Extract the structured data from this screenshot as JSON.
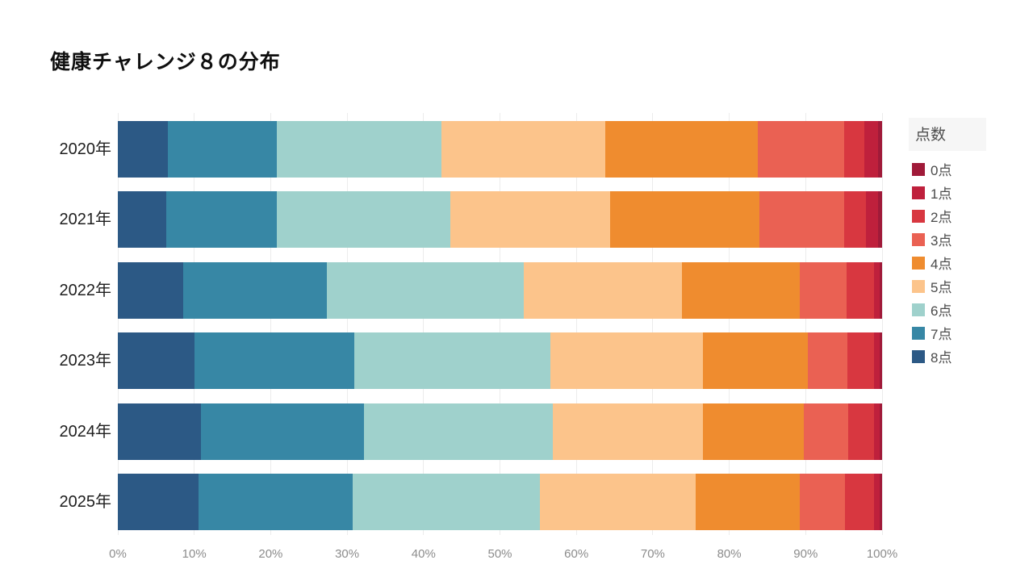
{
  "title": "健康チャレンジ８の分布",
  "chart_data": {
    "type": "bar",
    "orientation": "horizontal",
    "stacked": true,
    "unit": "percent",
    "title": "健康チャレンジ８の分布",
    "categories": [
      "2020年",
      "2021年",
      "2022年",
      "2023年",
      "2024年",
      "2025年"
    ],
    "series": [
      {
        "name": "8点",
        "color": "#2c5985",
        "values": [
          6.5,
          6.3,
          8.6,
          10.0,
          10.9,
          10.6
        ]
      },
      {
        "name": "7点",
        "color": "#3787a5",
        "values": [
          14.3,
          14.5,
          18.8,
          20.9,
          21.3,
          20.1
        ]
      },
      {
        "name": "6点",
        "color": "#9fd1cc",
        "values": [
          21.5,
          22.7,
          25.7,
          25.7,
          24.7,
          24.5
        ]
      },
      {
        "name": "5点",
        "color": "#fcc48b",
        "values": [
          21.5,
          20.9,
          20.7,
          20.0,
          19.7,
          20.4
        ]
      },
      {
        "name": "4点",
        "color": "#ef8c2f",
        "values": [
          19.9,
          19.5,
          15.4,
          13.7,
          13.2,
          13.6
        ]
      },
      {
        "name": "3点",
        "color": "#ea6153",
        "values": [
          11.3,
          11.1,
          6.2,
          5.2,
          5.8,
          5.9
        ]
      },
      {
        "name": "2点",
        "color": "#d83740",
        "values": [
          2.7,
          2.9,
          3.6,
          3.4,
          3.3,
          3.9
        ]
      },
      {
        "name": "1点",
        "color": "#bf203c",
        "values": [
          1.8,
          1.6,
          0.7,
          0.8,
          0.8,
          0.7
        ]
      },
      {
        "name": "0点",
        "color": "#a01a39",
        "values": [
          0.5,
          0.5,
          0.3,
          0.3,
          0.3,
          0.3
        ]
      }
    ],
    "x_ticks": [
      "0%",
      "10%",
      "20%",
      "30%",
      "40%",
      "50%",
      "60%",
      "70%",
      "80%",
      "90%",
      "100%"
    ],
    "xlim": [
      0,
      100
    ],
    "grid": true,
    "legend": {
      "title": "点数",
      "position": "right",
      "order_top_to_bottom": [
        "0点",
        "1点",
        "2点",
        "3点",
        "4点",
        "5点",
        "6点",
        "7点",
        "8点"
      ]
    }
  }
}
